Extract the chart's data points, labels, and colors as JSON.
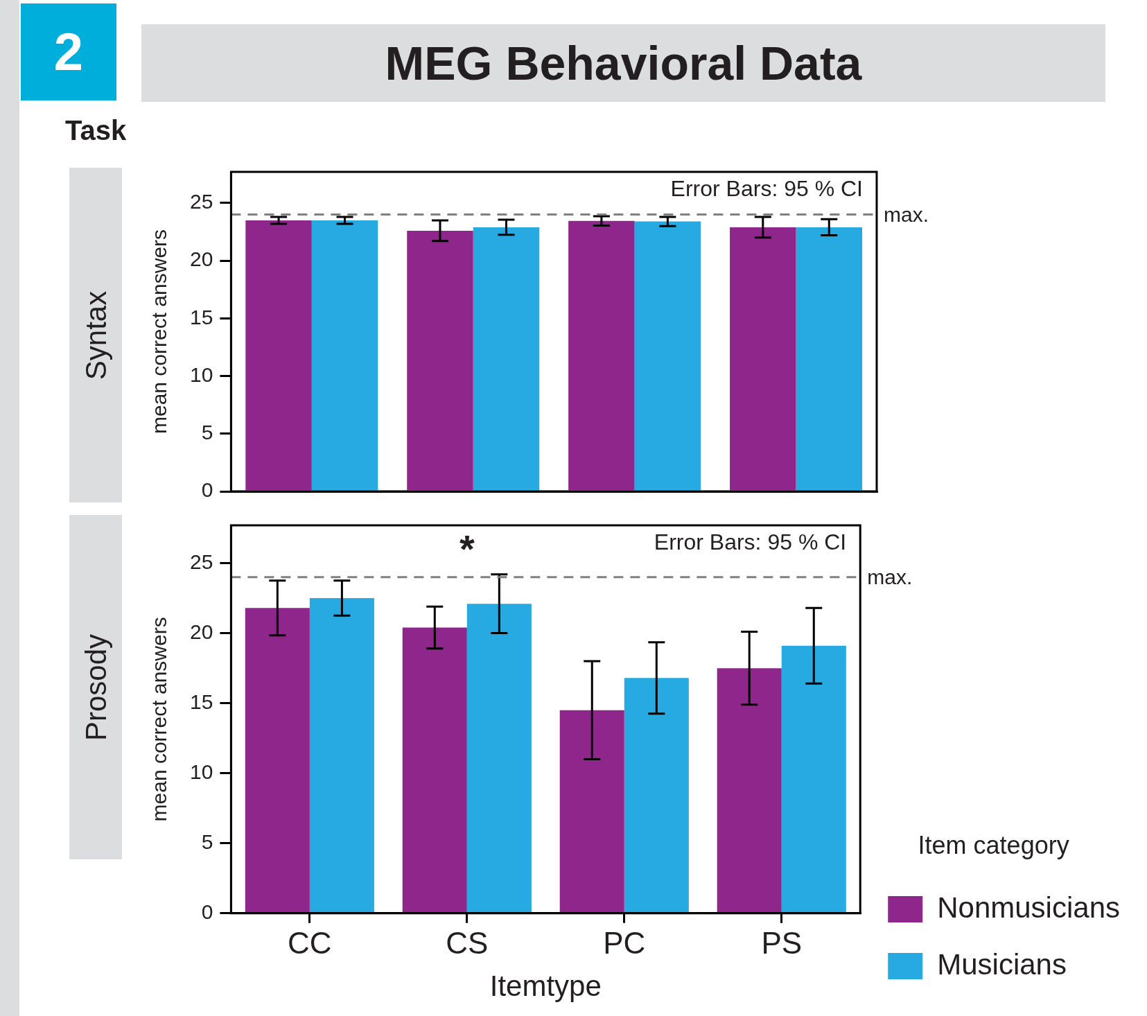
{
  "chart_data": [
    {
      "type": "bar",
      "title": "MEG Behavioral Data",
      "subtitle": "Syntax",
      "ylabel": "mean correct answers",
      "categories": [
        null,
        null,
        null,
        null
      ],
      "series": [
        {
          "color": "#8e268b",
          "values": [
            23.5,
            22.6,
            23.45,
            22.9
          ],
          "errors": [
            0.3,
            0.9,
            0.4,
            0.9
          ]
        },
        {
          "color": "#27a9e1",
          "values": [
            23.5,
            22.9,
            23.4,
            22.9
          ],
          "errors": [
            0.3,
            0.65,
            0.4,
            0.7
          ]
        }
      ],
      "ylim": [
        0,
        27.7
      ],
      "yticks": [
        0,
        5,
        10,
        15,
        20,
        25
      ],
      "tick_labels": "y",
      "ref_lines": [
        {
          "axis": "y",
          "value": 24,
          "label": "max.",
          "color": "#808080",
          "line_style": "dashed"
        }
      ],
      "annotations": [
        "2",
        "Task",
        "Error Bars: 95 % CI"
      ]
    },
    {
      "type": "bar",
      "subtitle": "Prosody",
      "xlabel": "Itemtype",
      "ylabel": "mean correct answers",
      "categories": [
        "CC",
        "CS",
        "PC",
        "PS"
      ],
      "series": [
        {
          "name": "Nonmusicians",
          "color": "#8e268b",
          "values": [
            21.8,
            20.4,
            14.5,
            17.5
          ],
          "errors": [
            1.95,
            1.5,
            3.5,
            2.6
          ]
        },
        {
          "name": "Musicians",
          "color": "#27a9e1",
          "values": [
            22.5,
            22.1,
            16.8,
            19.1
          ],
          "errors": [
            1.25,
            2.1,
            2.55,
            2.7
          ]
        }
      ],
      "ylim": [
        0,
        27.7
      ],
      "yticks": [
        0,
        5,
        10,
        15,
        20,
        25
      ],
      "ref_lines": [
        {
          "axis": "y",
          "value": 24,
          "label": "max.",
          "color": "#808080",
          "line_style": "dashed"
        }
      ],
      "legend": "bottom right",
      "legend_title": "Item category",
      "annotations": [
        "Error Bars: 95 % CI",
        "*"
      ]
    }
  ]
}
